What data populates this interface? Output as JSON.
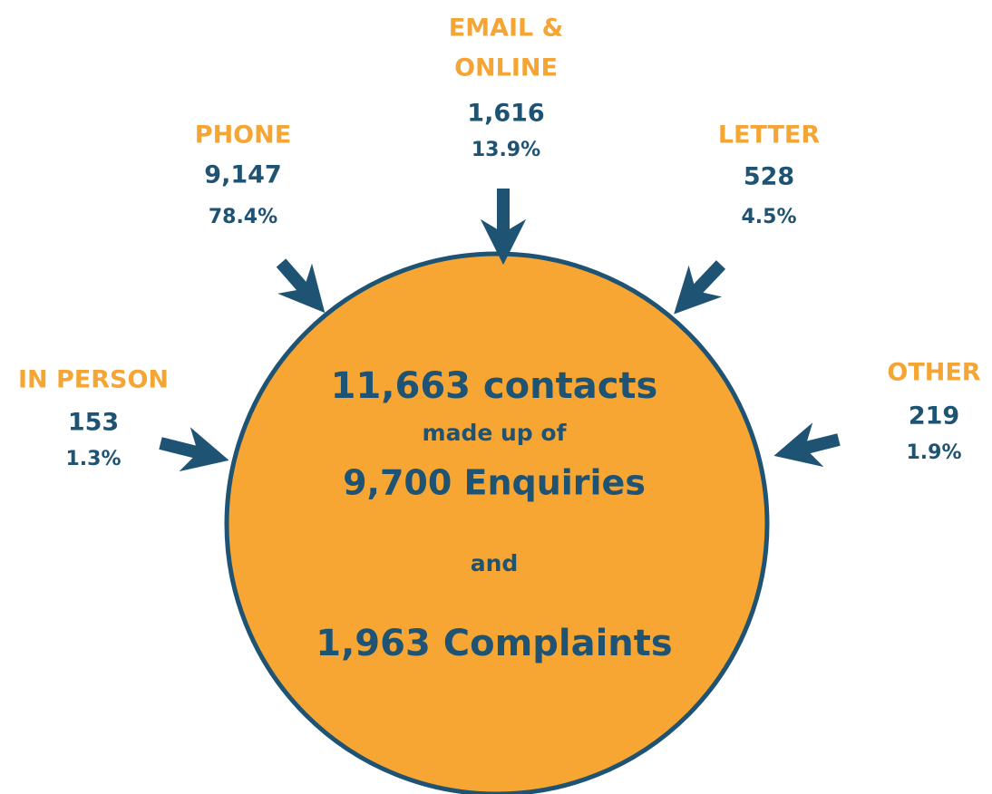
{
  "center": {
    "lines": [
      "11,663 contacts",
      "made up of",
      "9,700 Enquiries",
      "and",
      "1,963 Complaints"
    ]
  },
  "channels": [
    {
      "label_lines": [
        "EMAIL &",
        "ONLINE"
      ],
      "count": "1,616",
      "percent": "13.9%"
    },
    {
      "label_lines": [
        "PHONE"
      ],
      "count": "9,147",
      "percent": "78.4%"
    },
    {
      "label_lines": [
        "LETTER"
      ],
      "count": "528",
      "percent": "4.5%"
    },
    {
      "label_lines": [
        "IN PERSON"
      ],
      "count": "153",
      "percent": "1.3%"
    },
    {
      "label_lines": [
        "OTHER"
      ],
      "count": "219",
      "percent": "1.9%"
    }
  ]
}
